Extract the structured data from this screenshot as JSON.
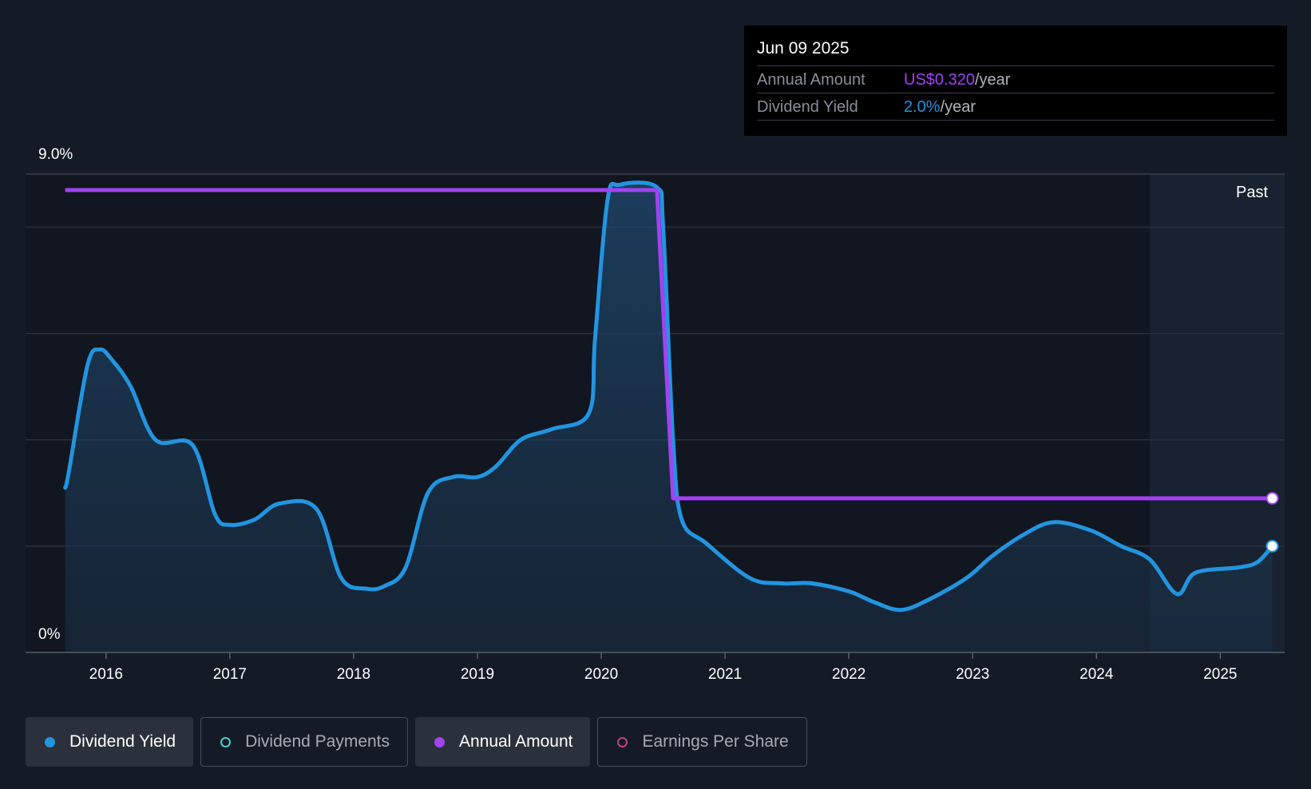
{
  "colors": {
    "background": "#151b26",
    "dividend_yield": "#2394df",
    "annual_amount": "#a142f4",
    "dividend_payments": "#4ecdc4",
    "earnings_per_share": "#c0447c"
  },
  "tooltip": {
    "date": "Jun 09 2025",
    "rows": [
      {
        "label": "Annual Amount",
        "value": "US$0.320",
        "unit": "/year",
        "color": "#a142f4"
      },
      {
        "label": "Dividend Yield",
        "value": "2.0%",
        "unit": "/year",
        "color": "#2394df"
      }
    ]
  },
  "past_label": "Past",
  "legend": [
    {
      "label": "Dividend Yield",
      "active": true,
      "filled": true,
      "color": "#2394df",
      "icon": "filled-dot-icon"
    },
    {
      "label": "Dividend Payments",
      "active": false,
      "filled": false,
      "color": "#4ecdc4",
      "icon": "hollow-dot-icon"
    },
    {
      "label": "Annual Amount",
      "active": true,
      "filled": true,
      "color": "#a142f4",
      "icon": "filled-dot-icon"
    },
    {
      "label": "Earnings Per Share",
      "active": false,
      "filled": false,
      "color": "#c0447c",
      "icon": "hollow-dot-icon"
    }
  ],
  "chart_data": {
    "type": "line",
    "ylim": [
      0,
      9
    ],
    "y_tick_labels": [
      "0%",
      "9.0%"
    ],
    "xlim": [
      2015.35,
      2025.52
    ],
    "x_ticks": [
      2016,
      2017,
      2018,
      2019,
      2020,
      2021,
      2022,
      2023,
      2024,
      2025
    ],
    "x_tick_labels": [
      "2016",
      "2017",
      "2018",
      "2019",
      "2020",
      "2021",
      "2022",
      "2023",
      "2024",
      "2025"
    ],
    "grid": true,
    "past_region_start": 2024.43,
    "series": [
      {
        "name": "Dividend Yield",
        "unit": "%",
        "x": [
          2015.67,
          2015.7,
          2015.85,
          2015.95,
          2016.05,
          2016.2,
          2016.4,
          2016.7,
          2016.88,
          2017.0,
          2017.2,
          2017.4,
          2017.7,
          2017.9,
          2018.1,
          2018.25,
          2018.42,
          2018.6,
          2018.8,
          2019.0,
          2019.15,
          2019.35,
          2019.6,
          2019.9,
          2019.95,
          2020.05,
          2020.15,
          2020.45,
          2020.5,
          2020.58,
          2020.65,
          2020.85,
          2021.2,
          2021.45,
          2021.7,
          2022.0,
          2022.2,
          2022.42,
          2022.65,
          2022.95,
          2023.15,
          2023.4,
          2023.65,
          2023.95,
          2024.2,
          2024.43,
          2024.65,
          2024.8,
          2025.15,
          2025.3,
          2025.42
        ],
        "y": [
          3.1,
          3.4,
          5.4,
          5.7,
          5.5,
          5.0,
          4.0,
          3.9,
          2.6,
          2.4,
          2.5,
          2.8,
          2.7,
          1.4,
          1.2,
          1.25,
          1.6,
          3.0,
          3.3,
          3.3,
          3.5,
          4.0,
          4.2,
          4.5,
          5.9,
          8.5,
          8.8,
          8.75,
          8.0,
          4.0,
          2.5,
          2.05,
          1.4,
          1.3,
          1.3,
          1.15,
          0.95,
          0.8,
          1.0,
          1.4,
          1.8,
          2.2,
          2.45,
          2.3,
          2.0,
          1.75,
          1.1,
          1.5,
          1.6,
          1.7,
          2.0
        ]
      },
      {
        "name": "Annual Amount",
        "unit": "US$",
        "x": [
          2015.67,
          2020.45,
          2020.58,
          2025.42
        ],
        "y": [
          8.7,
          8.7,
          2.9,
          2.9
        ]
      }
    ]
  }
}
